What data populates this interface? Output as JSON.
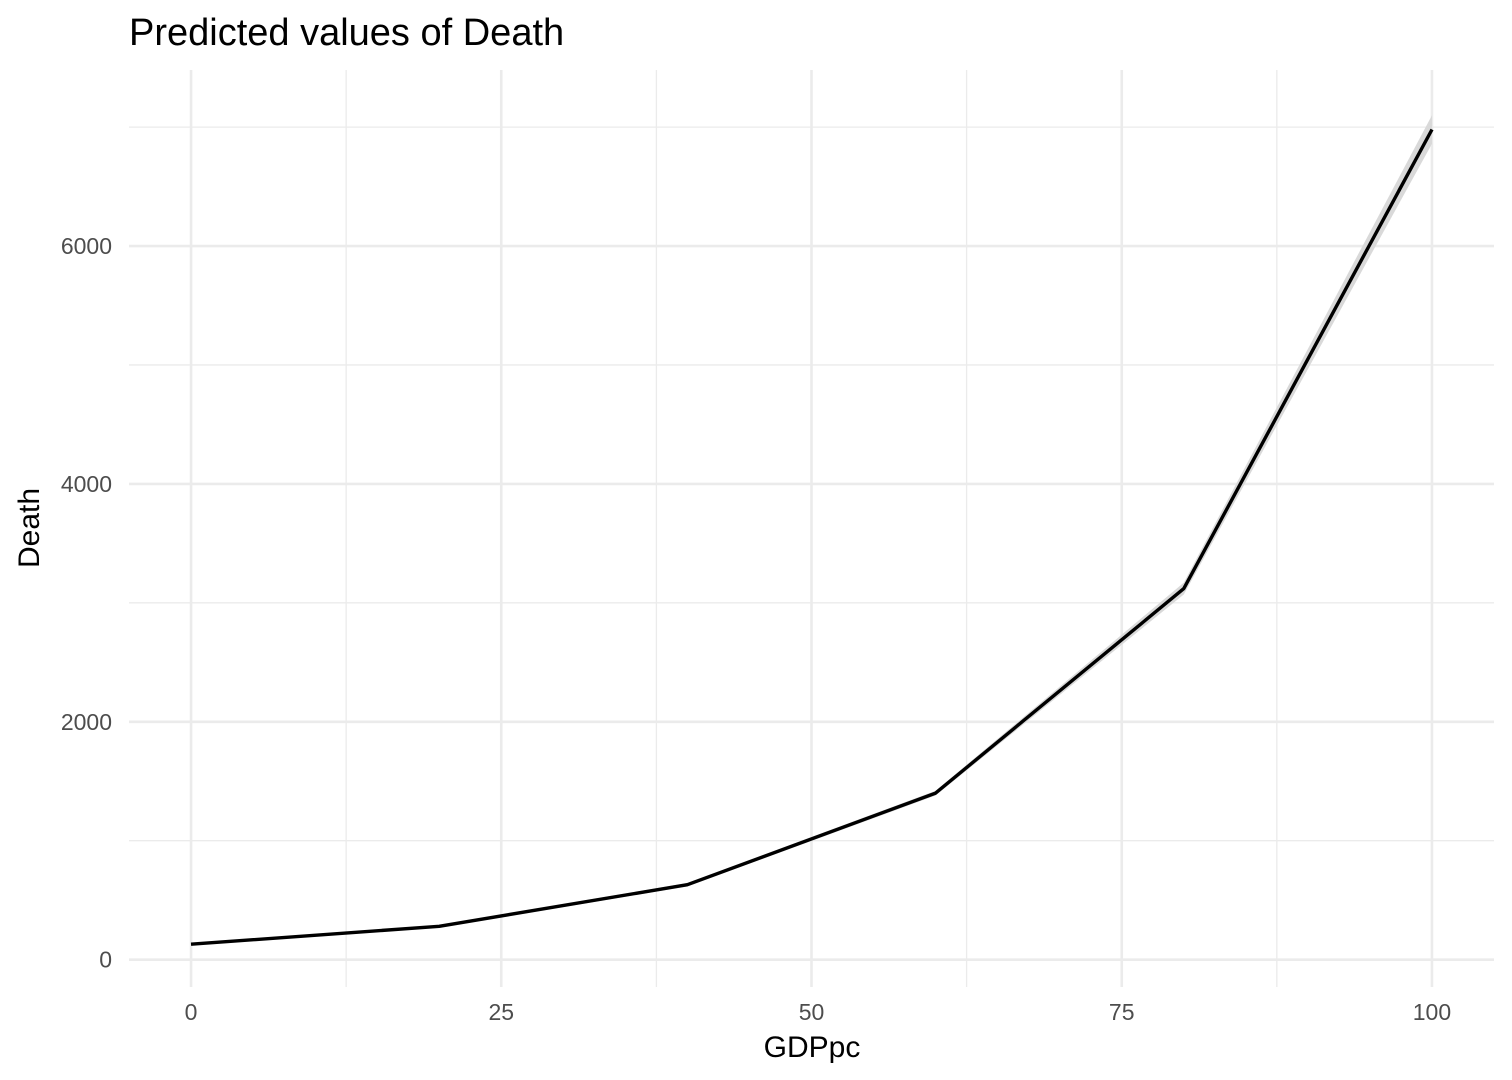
{
  "chart_data": {
    "type": "line",
    "title": "Predicted values of Death",
    "xlabel": "GDPpc",
    "ylabel": "Death",
    "x": [
      0,
      20,
      40,
      60,
      80,
      100
    ],
    "series": [
      {
        "values": [
          130,
          280,
          630,
          1400,
          3120,
          6980
        ],
        "ci_lower": [
          120,
          270,
          615,
          1380,
          3070,
          6860
        ],
        "ci_upper": [
          140,
          290,
          645,
          1420,
          3170,
          7100
        ]
      }
    ],
    "xlim": [
      -5,
      105
    ],
    "ylim": [
      -230,
      7480
    ],
    "xticks": [
      0,
      25,
      50,
      75,
      100
    ],
    "xtick_labels": [
      "0",
      "25",
      "50",
      "75",
      "100"
    ],
    "yticks": [
      0,
      2000,
      4000,
      6000
    ],
    "ytick_labels": [
      "0",
      "2000",
      "4000",
      "6000"
    ],
    "grid": true,
    "colors": {
      "line": "#000000",
      "ribbon": "#d9d9d9",
      "grid": "#ebebeb",
      "tick_text": "#4d4d4d"
    }
  }
}
